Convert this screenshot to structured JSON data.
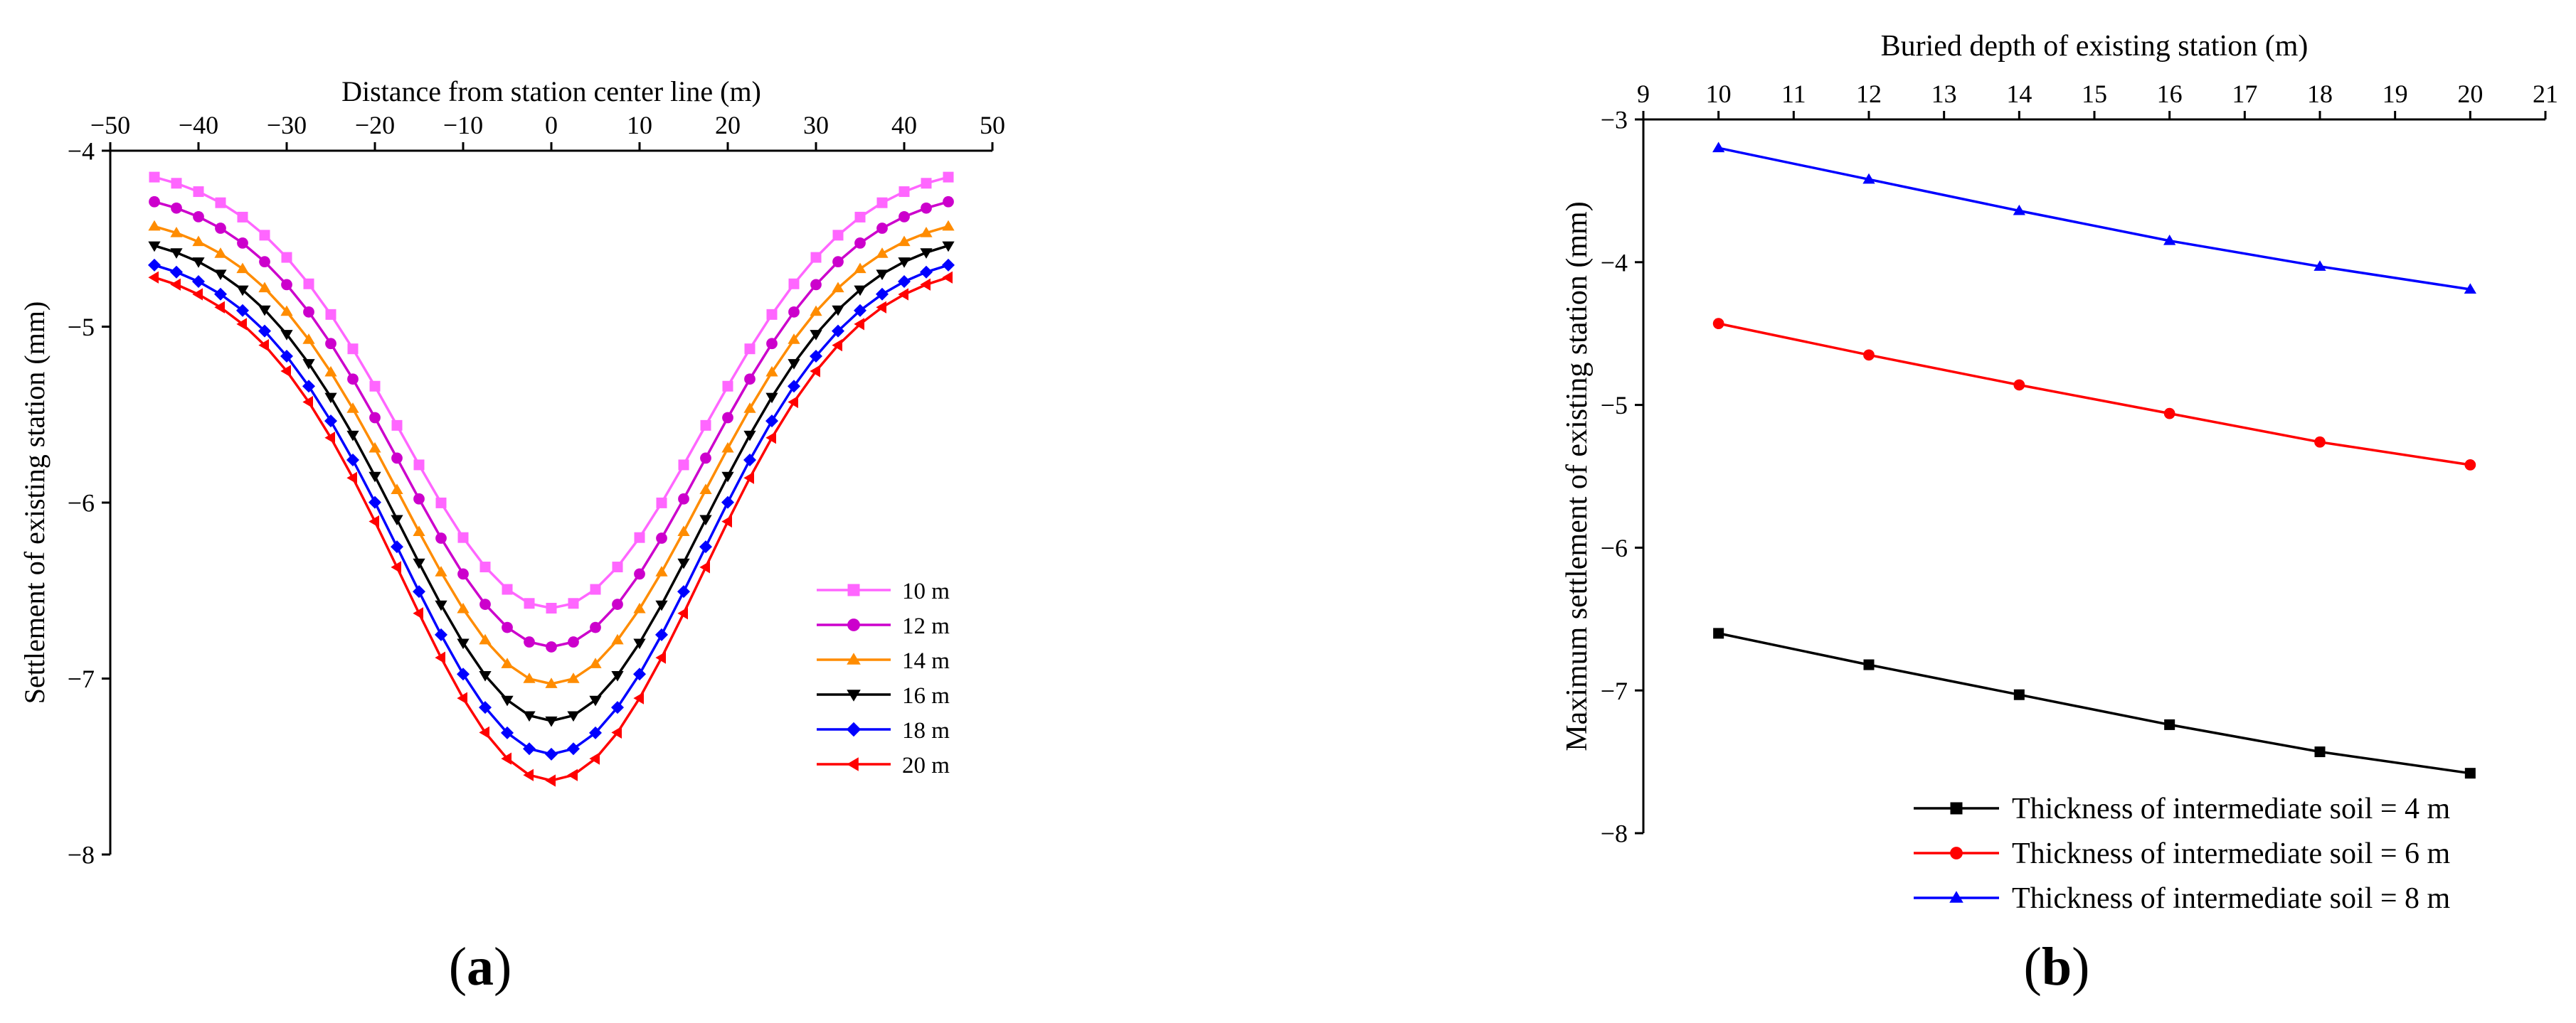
{
  "panels": {
    "a": {
      "label_open": "(",
      "letter": "a",
      "label_close": ")"
    },
    "b": {
      "label_open": "(",
      "letter": "b",
      "label_close": ")"
    }
  },
  "chart_data": [
    {
      "id": "a",
      "type": "line",
      "xlabel": "Distance from station center line (m)",
      "ylabel": "Settlement of existing station (mm)",
      "xlim": [
        -50,
        50
      ],
      "ylim": [
        -8,
        -4
      ],
      "x_ticks": [
        -50,
        -40,
        -30,
        -20,
        -10,
        0,
        10,
        20,
        30,
        40,
        50
      ],
      "y_ticks": [
        -8,
        -7,
        -6,
        -5,
        -4
      ],
      "x_axis_position": "top",
      "grid": false,
      "legend_position": "center-right",
      "x": [
        -45,
        -42.5,
        -40,
        -37.5,
        -35,
        -32.5,
        -30,
        -27.5,
        -25,
        -22.5,
        -20,
        -17.5,
        -15,
        -12.5,
        -10,
        -7.5,
        -5,
        -2.5,
        0,
        2.5,
        5,
        7.5,
        10,
        12.5,
        15,
        17.5,
        20,
        22.5,
        25,
        27.5,
        30,
        32.5,
        35,
        37.5,
        40,
        42.5,
        45
      ],
      "series": [
        {
          "name": "10 m",
          "color": "#ff66ff",
          "marker": "square",
          "edge": -4.15,
          "min": -6.6
        },
        {
          "name": "12 m",
          "color": "#cc00cc",
          "marker": "circle",
          "edge": -4.29,
          "min": -6.82
        },
        {
          "name": "14 m",
          "color": "#ff8c00",
          "marker": "triangle-up",
          "edge": -4.43,
          "min": -7.03
        },
        {
          "name": "16 m",
          "color": "#000000",
          "marker": "triangle-down",
          "edge": -4.54,
          "min": -7.24
        },
        {
          "name": "18 m",
          "color": "#0000ff",
          "marker": "diamond",
          "edge": -4.65,
          "min": -7.43
        },
        {
          "name": "20 m",
          "color": "#ff0000",
          "marker": "triangle-left",
          "edge": -4.72,
          "min": -7.58
        }
      ]
    },
    {
      "id": "b",
      "type": "line",
      "xlabel": "Buried depth of existing station (m)",
      "ylabel": "Maximum settlement of existing station (mm)",
      "xlim": [
        9,
        21
      ],
      "ylim": [
        -8,
        -3
      ],
      "x_ticks": [
        9,
        10,
        11,
        12,
        13,
        14,
        15,
        16,
        17,
        18,
        19,
        20,
        21
      ],
      "y_ticks": [
        -8,
        -7,
        -6,
        -5,
        -4,
        -3
      ],
      "x_axis_position": "top",
      "grid": false,
      "legend_position": "bottom-right",
      "x": [
        10,
        12,
        14,
        16,
        18,
        20
      ],
      "series": [
        {
          "name": "Thickness of intermediate soil = 4 m",
          "color": "#000000",
          "marker": "square",
          "values": [
            -6.6,
            -6.82,
            -7.03,
            -7.24,
            -7.43,
            -7.58
          ]
        },
        {
          "name": "Thickness of intermediate soil = 6 m",
          "color": "#ff0000",
          "marker": "circle",
          "values": [
            -4.43,
            -4.65,
            -4.86,
            -5.06,
            -5.26,
            -5.42
          ]
        },
        {
          "name": "Thickness of intermediate soil = 8 m",
          "color": "#0000ff",
          "marker": "triangle-up",
          "values": [
            -3.2,
            -3.42,
            -3.64,
            -3.85,
            -4.03,
            -4.19
          ]
        }
      ]
    }
  ]
}
